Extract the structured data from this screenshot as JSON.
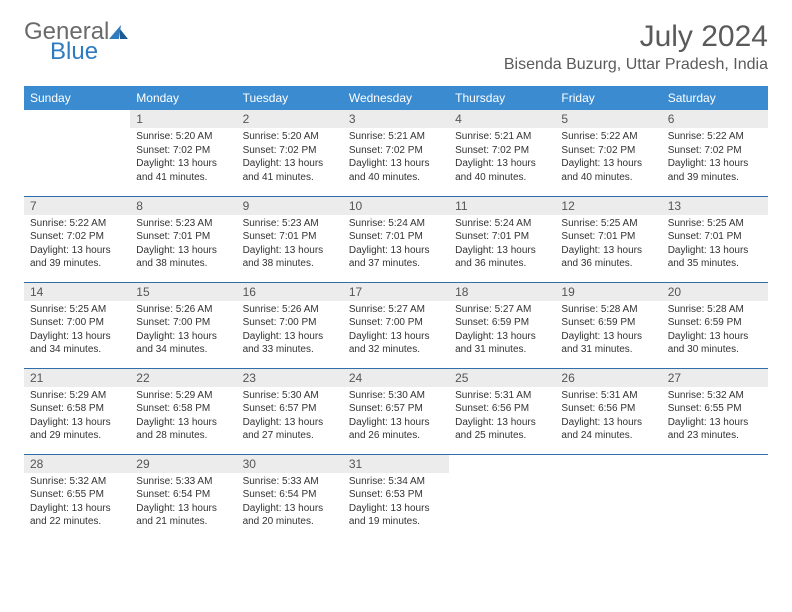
{
  "logo": {
    "word1": "General",
    "word2": "Blue"
  },
  "title": "July 2024",
  "location": "Bisenda Buzurg, Uttar Pradesh, India",
  "colors": {
    "header_bg": "#3b8bd0",
    "header_text": "#ffffff",
    "daynum_bg": "#ececec",
    "rule": "#2f6ea8",
    "logo_accent": "#2f7bbf"
  },
  "weekdays": [
    "Sunday",
    "Monday",
    "Tuesday",
    "Wednesday",
    "Thursday",
    "Friday",
    "Saturday"
  ],
  "weeks": [
    [
      {
        "empty": true
      },
      {
        "num": "1",
        "sunrise": "5:20 AM",
        "sunset": "7:02 PM",
        "daylight": "13 hours and 41 minutes."
      },
      {
        "num": "2",
        "sunrise": "5:20 AM",
        "sunset": "7:02 PM",
        "daylight": "13 hours and 41 minutes."
      },
      {
        "num": "3",
        "sunrise": "5:21 AM",
        "sunset": "7:02 PM",
        "daylight": "13 hours and 40 minutes."
      },
      {
        "num": "4",
        "sunrise": "5:21 AM",
        "sunset": "7:02 PM",
        "daylight": "13 hours and 40 minutes."
      },
      {
        "num": "5",
        "sunrise": "5:22 AM",
        "sunset": "7:02 PM",
        "daylight": "13 hours and 40 minutes."
      },
      {
        "num": "6",
        "sunrise": "5:22 AM",
        "sunset": "7:02 PM",
        "daylight": "13 hours and 39 minutes."
      }
    ],
    [
      {
        "num": "7",
        "sunrise": "5:22 AM",
        "sunset": "7:02 PM",
        "daylight": "13 hours and 39 minutes."
      },
      {
        "num": "8",
        "sunrise": "5:23 AM",
        "sunset": "7:01 PM",
        "daylight": "13 hours and 38 minutes."
      },
      {
        "num": "9",
        "sunrise": "5:23 AM",
        "sunset": "7:01 PM",
        "daylight": "13 hours and 38 minutes."
      },
      {
        "num": "10",
        "sunrise": "5:24 AM",
        "sunset": "7:01 PM",
        "daylight": "13 hours and 37 minutes."
      },
      {
        "num": "11",
        "sunrise": "5:24 AM",
        "sunset": "7:01 PM",
        "daylight": "13 hours and 36 minutes."
      },
      {
        "num": "12",
        "sunrise": "5:25 AM",
        "sunset": "7:01 PM",
        "daylight": "13 hours and 36 minutes."
      },
      {
        "num": "13",
        "sunrise": "5:25 AM",
        "sunset": "7:01 PM",
        "daylight": "13 hours and 35 minutes."
      }
    ],
    [
      {
        "num": "14",
        "sunrise": "5:25 AM",
        "sunset": "7:00 PM",
        "daylight": "13 hours and 34 minutes."
      },
      {
        "num": "15",
        "sunrise": "5:26 AM",
        "sunset": "7:00 PM",
        "daylight": "13 hours and 34 minutes."
      },
      {
        "num": "16",
        "sunrise": "5:26 AM",
        "sunset": "7:00 PM",
        "daylight": "13 hours and 33 minutes."
      },
      {
        "num": "17",
        "sunrise": "5:27 AM",
        "sunset": "7:00 PM",
        "daylight": "13 hours and 32 minutes."
      },
      {
        "num": "18",
        "sunrise": "5:27 AM",
        "sunset": "6:59 PM",
        "daylight": "13 hours and 31 minutes."
      },
      {
        "num": "19",
        "sunrise": "5:28 AM",
        "sunset": "6:59 PM",
        "daylight": "13 hours and 31 minutes."
      },
      {
        "num": "20",
        "sunrise": "5:28 AM",
        "sunset": "6:59 PM",
        "daylight": "13 hours and 30 minutes."
      }
    ],
    [
      {
        "num": "21",
        "sunrise": "5:29 AM",
        "sunset": "6:58 PM",
        "daylight": "13 hours and 29 minutes."
      },
      {
        "num": "22",
        "sunrise": "5:29 AM",
        "sunset": "6:58 PM",
        "daylight": "13 hours and 28 minutes."
      },
      {
        "num": "23",
        "sunrise": "5:30 AM",
        "sunset": "6:57 PM",
        "daylight": "13 hours and 27 minutes."
      },
      {
        "num": "24",
        "sunrise": "5:30 AM",
        "sunset": "6:57 PM",
        "daylight": "13 hours and 26 minutes."
      },
      {
        "num": "25",
        "sunrise": "5:31 AM",
        "sunset": "6:56 PM",
        "daylight": "13 hours and 25 minutes."
      },
      {
        "num": "26",
        "sunrise": "5:31 AM",
        "sunset": "6:56 PM",
        "daylight": "13 hours and 24 minutes."
      },
      {
        "num": "27",
        "sunrise": "5:32 AM",
        "sunset": "6:55 PM",
        "daylight": "13 hours and 23 minutes."
      }
    ],
    [
      {
        "num": "28",
        "sunrise": "5:32 AM",
        "sunset": "6:55 PM",
        "daylight": "13 hours and 22 minutes."
      },
      {
        "num": "29",
        "sunrise": "5:33 AM",
        "sunset": "6:54 PM",
        "daylight": "13 hours and 21 minutes."
      },
      {
        "num": "30",
        "sunrise": "5:33 AM",
        "sunset": "6:54 PM",
        "daylight": "13 hours and 20 minutes."
      },
      {
        "num": "31",
        "sunrise": "5:34 AM",
        "sunset": "6:53 PM",
        "daylight": "13 hours and 19 minutes."
      },
      {
        "empty": true
      },
      {
        "empty": true
      },
      {
        "empty": true
      }
    ]
  ],
  "labels": {
    "sunrise": "Sunrise:",
    "sunset": "Sunset:",
    "daylight": "Daylight:"
  }
}
